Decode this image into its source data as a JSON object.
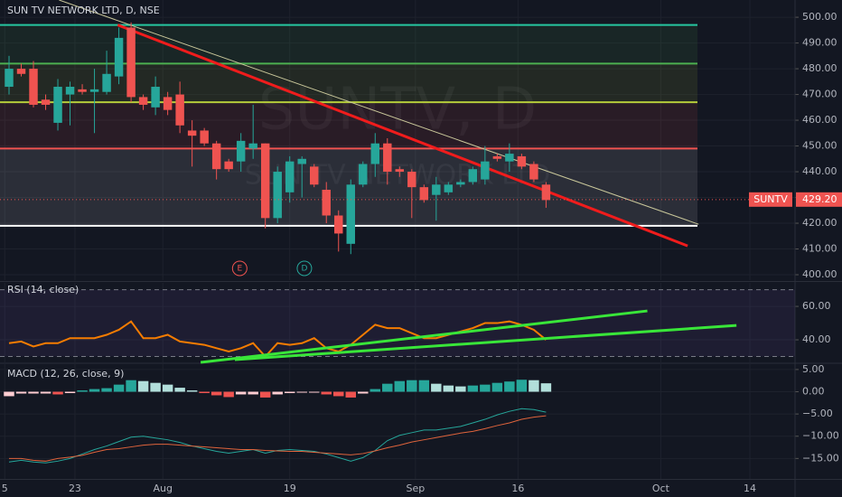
{
  "chart_data": [
    {
      "type": "candlestick",
      "title": "SUN TV NETWORK LTD, D, NSE",
      "watermark": "SUNTV, D",
      "watermark_subtitle": "SUN TV NETWORK LTD",
      "open": [
        473,
        480,
        480,
        468,
        459,
        470,
        472,
        471,
        471,
        477,
        496,
        469,
        465,
        469,
        470,
        456,
        456,
        451,
        444,
        444,
        449,
        451,
        422,
        432,
        443,
        442,
        433,
        423,
        412,
        435,
        443,
        451,
        441,
        440,
        434,
        431,
        432,
        435,
        436,
        437,
        446,
        444,
        446,
        443,
        435
      ],
      "high": [
        485,
        482,
        483,
        470,
        476,
        475,
        474,
        480,
        487,
        496,
        498,
        470,
        477,
        471,
        475,
        460,
        457,
        452,
        445,
        455,
        466,
        451,
        442,
        446,
        446,
        443,
        436,
        425,
        437,
        444,
        455,
        453,
        442,
        441,
        435,
        438,
        436,
        437,
        442,
        450,
        447,
        451,
        447,
        444,
        436
      ],
      "low": [
        470,
        477,
        465,
        464,
        456,
        458,
        470,
        455,
        470,
        474,
        467,
        464,
        462,
        462,
        455,
        442,
        450,
        437,
        440,
        440,
        445,
        418,
        420,
        428,
        430,
        434,
        420,
        409,
        408,
        434,
        438,
        435,
        438,
        422,
        428,
        421,
        431,
        434,
        435,
        435,
        444,
        440,
        441,
        436,
        426
      ],
      "close": [
        480,
        478,
        466,
        466,
        473,
        473,
        471,
        472,
        478,
        492,
        469,
        466,
        473,
        464,
        458,
        454,
        451,
        441,
        441,
        452,
        451,
        422,
        440,
        444,
        445,
        435,
        423,
        416,
        435,
        443,
        451,
        440,
        440,
        434,
        429,
        435,
        435,
        436,
        441,
        444,
        445,
        447,
        442,
        437,
        429
      ],
      "up_color": "#26a69a",
      "down_color": "#ef5350",
      "xlim": [
        -0.74,
        64.4
      ],
      "xticks": [
        {
          "value": -0.35,
          "label": "5"
        },
        {
          "value": 5.4,
          "label": "23"
        },
        {
          "value": 12.6,
          "label": "Aug"
        },
        {
          "value": 23,
          "label": "19"
        },
        {
          "value": 33.3,
          "label": "Sep"
        },
        {
          "value": 41.7,
          "label": "16"
        },
        {
          "value": 53.4,
          "label": "Oct"
        },
        {
          "value": 60.7,
          "label": "14"
        }
      ],
      "ylim": [
        397.9,
        506.7
      ],
      "yticks": [
        {
          "value": 400,
          "label": "400.00"
        },
        {
          "value": 410,
          "label": "410.00"
        },
        {
          "value": 420,
          "label": "420.00"
        },
        {
          "value": 430,
          "label": "430.00"
        },
        {
          "value": 440,
          "label": "440.00"
        },
        {
          "value": 450,
          "label": "450.00"
        },
        {
          "value": 460,
          "label": "460.00"
        },
        {
          "value": 470,
          "label": "470.00"
        },
        {
          "value": 480,
          "label": "480.00"
        },
        {
          "value": 490,
          "label": "490.00"
        },
        {
          "value": 500,
          "label": "500.00"
        }
      ],
      "grid": true,
      "levels": [
        {
          "value": 497,
          "color": "#26c6a0"
        },
        {
          "value": 482,
          "color": "#4caf50"
        },
        {
          "value": 467,
          "color": "#b5cc3a"
        },
        {
          "value": 449,
          "color": "#ef5350"
        },
        {
          "value": 419,
          "color": "#ffffff"
        }
      ],
      "trendlines": [
        {
          "x": [
            4.1,
            56.5
          ],
          "y": [
            506.7,
            419.6
          ],
          "color": "#c9c79a",
          "width": 1
        },
        {
          "x": [
            8.9,
            55.6
          ],
          "y": [
            497,
            411.2
          ],
          "color": "#f01c1c",
          "width": 3
        }
      ],
      "last_price": {
        "name": "SUNTV",
        "value": 429.2,
        "label": "429.20",
        "color": "#ef5350"
      },
      "events": [
        {
          "label": "E",
          "x": 18.9,
          "color": "#ef5350"
        },
        {
          "label": "D",
          "x": 24.2,
          "color": "#26a69a"
        }
      ]
    },
    {
      "type": "line",
      "title": "RSI (14, close)",
      "values": [
        38,
        39,
        36,
        38,
        38,
        41,
        41,
        41,
        43,
        46,
        51,
        41,
        41,
        43,
        39,
        38,
        37,
        35,
        33,
        35,
        38,
        30,
        38,
        37,
        38,
        41,
        35,
        33,
        37,
        43,
        49,
        47,
        47,
        44,
        41,
        41,
        43,
        45,
        47,
        50,
        50,
        51,
        49,
        46,
        40
      ],
      "color": "#f57c00",
      "ylim": [
        26.5,
        74.1
      ],
      "yticks": [
        {
          "value": 40,
          "label": "40.00"
        },
        {
          "value": 60,
          "label": "60.00"
        }
      ],
      "bands": [
        30,
        70
      ],
      "trendlines": [
        {
          "x": [
            15.7,
            52.3
          ],
          "y": [
            26.5,
            57.3
          ],
          "color": "#39e639",
          "width": 3
        },
        {
          "x": [
            18.5,
            59.6
          ],
          "y": [
            28.1,
            48.6
          ],
          "color": "#39e639",
          "width": 3
        }
      ]
    },
    {
      "type": "macd",
      "title": "MACD (12, 26, close, 9)",
      "histogram": [
        -1,
        -0.4,
        -0.4,
        -0.4,
        -0.6,
        -0.3,
        0.3,
        0.6,
        0.8,
        1.6,
        2.6,
        2.4,
        2.0,
        1.6,
        0.9,
        0.3,
        -0.3,
        -0.8,
        -1.2,
        -0.6,
        -0.6,
        -1.3,
        -0.6,
        -0.3,
        -0.2,
        -0.1,
        -0.6,
        -1.0,
        -1.3,
        -0.4,
        0.6,
        1.8,
        2.4,
        2.6,
        2.6,
        1.8,
        1.4,
        1.2,
        1.4,
        1.6,
        2.0,
        2.3,
        2.7,
        2.6,
        1.9
      ],
      "macd": [
        -15.8,
        -15.4,
        -15.8,
        -16.0,
        -15.6,
        -15.0,
        -14.0,
        -13.0,
        -12.2,
        -11.2,
        -10.2,
        -10.0,
        -10.4,
        -10.8,
        -11.4,
        -12.2,
        -12.8,
        -13.4,
        -13.8,
        -13.4,
        -13.0,
        -13.8,
        -13.2,
        -13.0,
        -13.2,
        -13.4,
        -14.0,
        -14.8,
        -15.6,
        -14.8,
        -13.2,
        -11.0,
        -9.8,
        -9.2,
        -8.6,
        -8.6,
        -8.2,
        -7.8,
        -7.0,
        -6.2,
        -5.2,
        -4.4,
        -3.8,
        -4.0,
        -4.6
      ],
      "signal": [
        -15.0,
        -15.0,
        -15.4,
        -15.6,
        -15.0,
        -14.7,
        -14.3,
        -13.6,
        -13.0,
        -12.8,
        -12.4,
        -12.0,
        -11.8,
        -11.8,
        -12.0,
        -12.2,
        -12.4,
        -12.6,
        -12.8,
        -13.0,
        -13.0,
        -13.2,
        -13.3,
        -13.4,
        -13.4,
        -13.6,
        -13.8,
        -14.0,
        -14.2,
        -13.9,
        -13.3,
        -12.6,
        -12.0,
        -11.3,
        -10.8,
        -10.3,
        -9.8,
        -9.3,
        -8.9,
        -8.3,
        -7.6,
        -7.0,
        -6.2,
        -5.7,
        -5.4
      ],
      "macd_color": "#26a69a",
      "signal_color": "#e0643c",
      "hist_colors": {
        "up_rising": "#26a69a",
        "up_falling": "#b2dfdb",
        "down_falling": "#ef5350",
        "down_rising": "#ffcdd2"
      },
      "ylim": [
        -19.6,
        6.2
      ],
      "yticks": [
        {
          "value": 5,
          "label": "5.00"
        },
        {
          "value": 0,
          "label": "0.00"
        },
        {
          "value": -5,
          "label": "−5.00"
        },
        {
          "value": -10,
          "label": "−10.00"
        },
        {
          "value": -15,
          "label": "−15.00"
        }
      ]
    }
  ]
}
